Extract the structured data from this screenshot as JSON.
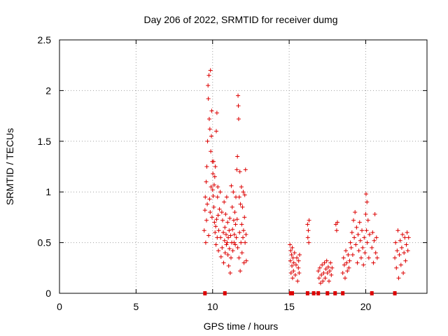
{
  "chart_data": {
    "type": "scatter",
    "title": "Day 206 of 2022, SRMTID for receiver dumg",
    "xlabel": "GPS time / hours",
    "ylabel": "SRMTID / TECUs",
    "xlim": [
      0,
      24
    ],
    "ylim": [
      0,
      2.5
    ],
    "x_ticks": [
      0,
      5,
      10,
      15,
      20
    ],
    "x_tick_labels": [
      "0",
      "5",
      "10",
      "15",
      "20"
    ],
    "y_ticks": [
      0,
      0.5,
      1,
      1.5,
      2,
      2.5
    ],
    "y_tick_labels": [
      "0",
      "0.5",
      "1",
      "1.5",
      "2",
      "2.5"
    ],
    "grid": true,
    "legend": "none",
    "marker": "plus",
    "color": "#dd0000",
    "series": [
      {
        "values": [
          [
            9.45,
            0.62
          ],
          [
            9.5,
            0.82
          ],
          [
            9.52,
            0.95
          ],
          [
            9.55,
            0.5
          ],
          [
            9.58,
            1.1
          ],
          [
            9.6,
            0.72
          ],
          [
            9.62,
            1.25
          ],
          [
            9.65,
            0.88
          ],
          [
            9.67,
            1.5
          ],
          [
            9.7,
            2.05
          ],
          [
            9.72,
            1.92
          ],
          [
            9.74,
            0.57
          ],
          [
            9.76,
            2.15
          ],
          [
            9.78,
            1.72
          ],
          [
            9.8,
            0.93
          ],
          [
            9.82,
            1.62
          ],
          [
            9.84,
            0.8
          ],
          [
            9.86,
            2.2
          ],
          [
            9.88,
            1.4
          ],
          [
            9.9,
            1.05
          ],
          [
            9.92,
            1.55
          ],
          [
            9.94,
            1.8
          ],
          [
            9.96,
            0.75
          ],
          [
            9.98,
            1.3
          ],
          [
            10.0,
            1.02
          ],
          [
            10.02,
            1.18
          ],
          [
            10.04,
            0.96
          ],
          [
            10.06,
            1.3
          ],
          [
            10.08,
            0.85
          ],
          [
            10.1,
            1.07
          ],
          [
            10.12,
            0.7
          ],
          [
            10.14,
            1.15
          ],
          [
            10.16,
            0.6
          ],
          [
            10.18,
            1.25
          ],
          [
            10.2,
            0.66
          ],
          [
            10.22,
            0.48
          ],
          [
            10.24,
            1.6
          ],
          [
            10.26,
            0.73
          ],
          [
            10.28,
            1.78
          ],
          [
            10.3,
            0.55
          ],
          [
            10.32,
            0.95
          ],
          [
            10.34,
            1.05
          ],
          [
            10.36,
            0.77
          ],
          [
            10.38,
            0.42
          ],
          [
            10.4,
            0.62
          ],
          [
            10.45,
            0.83
          ],
          [
            10.5,
            1.0
          ],
          [
            10.52,
            0.55
          ],
          [
            10.55,
            0.36
          ],
          [
            10.6,
            0.8
          ],
          [
            10.62,
            0.45
          ],
          [
            10.65,
            0.72
          ],
          [
            10.7,
            0.6
          ],
          [
            10.72,
            0.3
          ],
          [
            10.75,
            0.9
          ],
          [
            10.78,
            0.52
          ],
          [
            10.8,
            0.65
          ],
          [
            10.82,
            0.4
          ],
          [
            10.85,
            0.78
          ],
          [
            10.88,
            0.58
          ],
          [
            10.9,
            0.48
          ],
          [
            10.92,
            0.95
          ],
          [
            10.95,
            0.5
          ],
          [
            10.98,
            0.7
          ],
          [
            11.0,
            0.38
          ],
          [
            11.02,
            0.55
          ],
          [
            11.05,
            0.27
          ],
          [
            11.08,
            0.62
          ],
          [
            11.1,
            0.44
          ],
          [
            11.12,
            0.74
          ],
          [
            11.15,
            0.2
          ],
          [
            11.18,
            0.57
          ],
          [
            11.2,
            0.35
          ],
          [
            11.22,
            1.06
          ],
          [
            11.25,
            0.5
          ],
          [
            11.28,
            0.85
          ],
          [
            11.3,
            0.63
          ],
          [
            11.32,
            0.42
          ],
          [
            11.35,
            1.0
          ],
          [
            11.38,
            0.72
          ],
          [
            11.4,
            0.5
          ],
          [
            11.42,
            0.58
          ],
          [
            11.45,
            0.8
          ],
          [
            11.48,
            0.48
          ],
          [
            11.5,
            0.68
          ],
          [
            11.52,
            0.95
          ],
          [
            11.55,
            0.55
          ],
          [
            11.58,
            1.22
          ],
          [
            11.6,
            0.73
          ],
          [
            11.62,
            1.35
          ],
          [
            11.64,
            0.45
          ],
          [
            11.66,
            1.95
          ],
          [
            11.68,
            1.85
          ],
          [
            11.7,
            1.72
          ],
          [
            11.72,
            0.35
          ],
          [
            11.74,
            0.95
          ],
          [
            11.76,
            0.6
          ],
          [
            11.78,
            1.2
          ],
          [
            11.8,
            0.22
          ],
          [
            11.82,
            0.88
          ],
          [
            11.85,
            0.5
          ],
          [
            11.88,
            1.05
          ],
          [
            11.9,
            0.68
          ],
          [
            11.92,
            0.4
          ],
          [
            11.95,
            0.85
          ],
          [
            11.98,
            0.55
          ],
          [
            12.0,
            1.0
          ],
          [
            12.02,
            0.62
          ],
          [
            12.05,
            0.3
          ],
          [
            12.08,
            0.75
          ],
          [
            12.1,
            0.97
          ],
          [
            12.12,
            0.5
          ],
          [
            12.15,
            1.22
          ],
          [
            12.18,
            0.58
          ],
          [
            12.2,
            0.32
          ],
          [
            15.05,
            0.48
          ],
          [
            15.08,
            0.32
          ],
          [
            15.1,
            0.42
          ],
          [
            15.12,
            0.2
          ],
          [
            15.15,
            0.38
          ],
          [
            15.18,
            0.27
          ],
          [
            15.2,
            0.45
          ],
          [
            15.22,
            0.15
          ],
          [
            15.25,
            0.35
          ],
          [
            15.28,
            0.22
          ],
          [
            15.3,
            0.3
          ],
          [
            15.35,
            0.4
          ],
          [
            15.4,
            0.18
          ],
          [
            15.45,
            0.28
          ],
          [
            15.5,
            0.35
          ],
          [
            15.55,
            0.12
          ],
          [
            15.6,
            0.25
          ],
          [
            15.62,
            0.32
          ],
          [
            15.65,
            0.2
          ],
          [
            15.68,
            0.38
          ],
          [
            16.2,
            0.68
          ],
          [
            16.22,
            0.55
          ],
          [
            16.25,
            0.62
          ],
          [
            16.28,
            0.5
          ],
          [
            16.3,
            0.72
          ],
          [
            16.9,
            0.22
          ],
          [
            16.95,
            0.15
          ],
          [
            17.0,
            0.25
          ],
          [
            17.05,
            0.1
          ],
          [
            17.1,
            0.18
          ],
          [
            17.15,
            0.28
          ],
          [
            17.2,
            0.12
          ],
          [
            17.25,
            0.2
          ],
          [
            17.3,
            0.3
          ],
          [
            17.35,
            0.15
          ],
          [
            17.4,
            0.24
          ],
          [
            17.45,
            0.32
          ],
          [
            17.5,
            0.2
          ],
          [
            17.55,
            0.26
          ],
          [
            17.6,
            0.12
          ],
          [
            17.65,
            0.22
          ],
          [
            17.7,
            0.3
          ],
          [
            17.75,
            0.18
          ],
          [
            17.8,
            0.25
          ],
          [
            18.05,
            0.68
          ],
          [
            18.1,
            0.62
          ],
          [
            18.15,
            0.7
          ],
          [
            18.5,
            0.2
          ],
          [
            18.55,
            0.35
          ],
          [
            18.6,
            0.28
          ],
          [
            18.65,
            0.15
          ],
          [
            18.7,
            0.42
          ],
          [
            18.75,
            0.3
          ],
          [
            18.8,
            0.22
          ],
          [
            18.85,
            0.38
          ],
          [
            18.9,
            0.25
          ],
          [
            18.95,
            0.32
          ],
          [
            19.0,
            0.5
          ],
          [
            19.05,
            0.45
          ],
          [
            19.1,
            0.6
          ],
          [
            19.15,
            0.38
          ],
          [
            19.2,
            0.72
          ],
          [
            19.25,
            0.55
          ],
          [
            19.3,
            0.8
          ],
          [
            19.35,
            0.48
          ],
          [
            19.4,
            0.65
          ],
          [
            19.45,
            0.3
          ],
          [
            19.5,
            0.58
          ],
          [
            19.55,
            0.42
          ],
          [
            19.6,
            0.7
          ],
          [
            19.65,
            0.52
          ],
          [
            19.7,
            0.35
          ],
          [
            19.75,
            0.62
          ],
          [
            19.8,
            0.45
          ],
          [
            19.85,
            0.28
          ],
          [
            19.9,
            0.55
          ],
          [
            19.95,
            0.4
          ],
          [
            20.0,
            0.78
          ],
          [
            20.02,
            0.98
          ],
          [
            20.05,
            0.62
          ],
          [
            20.08,
            0.9
          ],
          [
            20.1,
            0.5
          ],
          [
            20.15,
            0.72
          ],
          [
            20.2,
            0.35
          ],
          [
            20.25,
            0.58
          ],
          [
            20.4,
            0.45
          ],
          [
            20.45,
            0.6
          ],
          [
            20.5,
            0.3
          ],
          [
            20.55,
            0.52
          ],
          [
            20.6,
            0.78
          ],
          [
            20.65,
            0.4
          ],
          [
            20.7,
            0.55
          ],
          [
            20.75,
            0.35
          ],
          [
            21.9,
            0.35
          ],
          [
            21.95,
            0.5
          ],
          [
            22.0,
            0.25
          ],
          [
            22.05,
            0.42
          ],
          [
            22.1,
            0.62
          ],
          [
            22.15,
            0.15
          ],
          [
            22.2,
            0.38
          ],
          [
            22.25,
            0.52
          ],
          [
            22.3,
            0.28
          ],
          [
            22.35,
            0.45
          ],
          [
            22.4,
            0.58
          ],
          [
            22.45,
            0.2
          ],
          [
            22.5,
            0.4
          ],
          [
            22.55,
            0.55
          ],
          [
            22.6,
            0.32
          ],
          [
            22.65,
            0.48
          ],
          [
            22.7,
            0.6
          ],
          [
            22.75,
            0.42
          ],
          [
            22.8,
            0.55
          ]
        ]
      }
    ],
    "zero_line_markers": [
      9.5,
      10.8,
      15.1,
      15.2,
      16.2,
      16.6,
      16.9,
      17.5,
      18.0,
      18.5,
      20.4,
      21.9
    ]
  }
}
